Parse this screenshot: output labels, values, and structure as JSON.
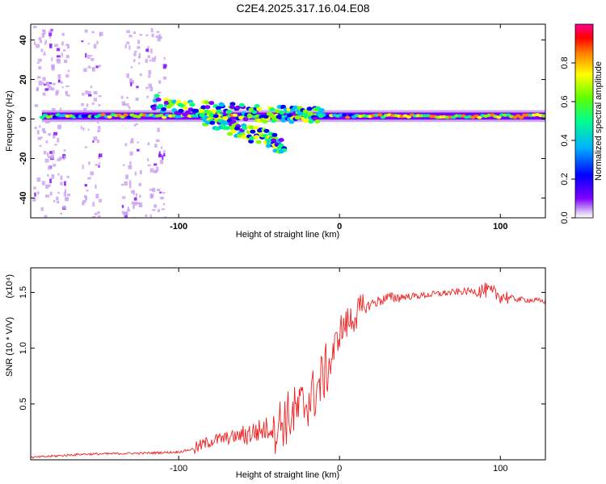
{
  "title": "C2E4.2025.317.16.04.E08",
  "chart_data": [
    {
      "type": "heatmap",
      "name": "spectrogram",
      "xlabel": "Height of straight line (km)",
      "ylabel": "Frequency (Hz)",
      "xlim": [
        -192,
        128
      ],
      "ylim": [
        -50,
        48
      ],
      "x_ticks": [
        -100,
        0,
        100
      ],
      "y_ticks": [
        -40,
        -20,
        0,
        20,
        40
      ],
      "colorbar": {
        "label": "Normalized spectral amplitude",
        "range": [
          0,
          1
        ],
        "ticks": [
          0.0,
          0.2,
          0.4,
          0.6,
          0.8
        ],
        "tick_labels": [
          "0.0",
          "0.2",
          "0.4",
          "0.6",
          "0.8"
        ],
        "colormap": [
          "#ffffff",
          "#c8a0f0",
          "#8000ff",
          "#0000ff",
          "#00c0ff",
          "#00ff80",
          "#80ff00",
          "#ffff00",
          "#ff8000",
          "#ff0000",
          "#ff0080"
        ]
      },
      "features": {
        "main_line_freq_hz": 1.5,
        "branch_upper": {
          "x": [
            -115,
            -85,
            -55,
            -30,
            -10
          ],
          "y": [
            8,
            5,
            3,
            2,
            2
          ]
        },
        "branch_lower": {
          "x": [
            -85,
            -65,
            -45,
            -35
          ],
          "y": [
            1,
            -5,
            -10,
            -14
          ]
        },
        "noise_columns_x": [
          -185,
          -175,
          -155,
          -130,
          -115
        ]
      }
    },
    {
      "type": "line",
      "name": "snr",
      "xlabel": "Height of straight line (km)",
      "ylabel": "SNR (10 * V/V)",
      "y_multiplier": "(x10⁴)",
      "xlim": [
        -192,
        128
      ],
      "ylim": [
        0,
        1.72
      ],
      "x_ticks": [
        -100,
        0,
        100
      ],
      "y_ticks": [
        0.5,
        1.0,
        1.5
      ],
      "y_tick_labels": [
        "0.5",
        "1.0",
        "1.5"
      ],
      "color": "#ee2222",
      "trend_x": [
        -192,
        -160,
        -120,
        -100,
        -90,
        -80,
        -60,
        -40,
        -25,
        -15,
        -5,
        0,
        10,
        20,
        30,
        50,
        70,
        90,
        100,
        110,
        128
      ],
      "trend_y": [
        0.02,
        0.05,
        0.06,
        0.07,
        0.1,
        0.17,
        0.22,
        0.3,
        0.45,
        0.6,
        0.9,
        1.15,
        1.3,
        1.4,
        1.45,
        1.47,
        1.5,
        1.52,
        1.47,
        1.44,
        1.42
      ]
    }
  ]
}
